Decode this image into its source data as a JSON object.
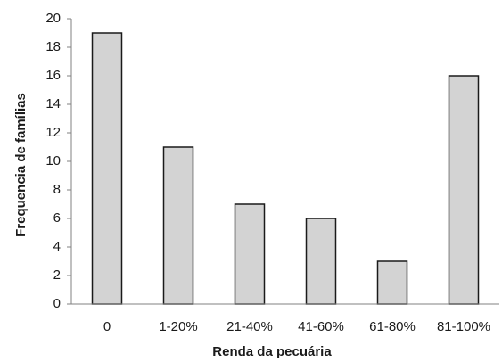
{
  "chart_data": {
    "type": "bar",
    "title": "",
    "xlabel": "Renda da pecuária",
    "ylabel": "Frequencia de famílias",
    "categories": [
      "0",
      "1-20%",
      "21-40%",
      "41-60%",
      "61-80%",
      "81-100%"
    ],
    "values": [
      19,
      11,
      7,
      6,
      3,
      16
    ],
    "ylim": [
      0,
      20
    ],
    "yticks": [
      0,
      2,
      4,
      6,
      8,
      10,
      12,
      14,
      16,
      18,
      20
    ],
    "grid": false,
    "legend": "none",
    "colors": {
      "bar_fill": "#d3d3d3",
      "bar_stroke": "#1a1a1a",
      "axis": "#808080"
    }
  }
}
